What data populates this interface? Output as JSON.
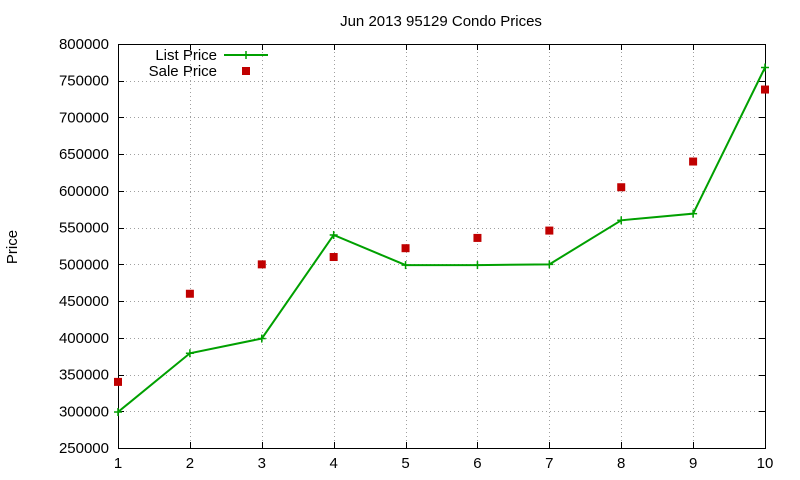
{
  "chart_data": {
    "type": "line",
    "title": "Jun 2013 95129 Condo Prices",
    "xlabel": "",
    "ylabel": "Price",
    "x": [
      1,
      2,
      3,
      4,
      5,
      6,
      7,
      8,
      9,
      10
    ],
    "xlim": [
      1,
      10
    ],
    "ylim": [
      250000,
      800000
    ],
    "yticks": [
      250000,
      300000,
      350000,
      400000,
      450000,
      500000,
      550000,
      600000,
      650000,
      700000,
      750000,
      800000
    ],
    "xticks": [
      1,
      2,
      3,
      4,
      5,
      6,
      7,
      8,
      9,
      10
    ],
    "grid": true,
    "legend_position": "top-left",
    "series": [
      {
        "name": "List Price",
        "style": "line-with-plus-markers",
        "color": "#00a000",
        "values": [
          299000,
          379000,
          399000,
          540000,
          499000,
          499000,
          500000,
          560000,
          569000,
          768000
        ]
      },
      {
        "name": "Sale Price",
        "style": "square-points",
        "color": "#c00000",
        "values": [
          340000,
          460000,
          500000,
          510000,
          522000,
          536000,
          546000,
          605000,
          640000,
          738000
        ]
      }
    ]
  }
}
